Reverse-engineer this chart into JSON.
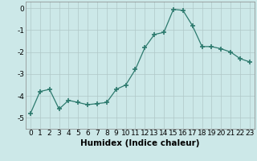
{
  "xlabel": "Humidex (Indice chaleur)",
  "ylabel": "",
  "x": [
    0,
    1,
    2,
    3,
    4,
    5,
    6,
    7,
    8,
    9,
    10,
    11,
    12,
    13,
    14,
    15,
    16,
    17,
    18,
    19,
    20,
    21,
    22,
    23
  ],
  "y": [
    -4.8,
    -3.8,
    -3.7,
    -4.6,
    -4.2,
    -4.3,
    -4.4,
    -4.35,
    -4.3,
    -3.7,
    -3.5,
    -2.8,
    -1.8,
    -1.2,
    -1.1,
    -0.05,
    -0.1,
    -0.8,
    -1.75,
    -1.75,
    -1.85,
    -2.0,
    -2.3,
    -2.45
  ],
  "line_color": "#2d7a6e",
  "marker": "+",
  "marker_size": 4,
  "bg_color": "#cce8e8",
  "grid_color": "#b0c8c8",
  "ylim": [
    -5.5,
    0.3
  ],
  "xlim": [
    -0.5,
    23.5
  ],
  "yticks": [
    0,
    -1,
    -2,
    -3,
    -4,
    -5
  ],
  "xticks": [
    0,
    1,
    2,
    3,
    4,
    5,
    6,
    7,
    8,
    9,
    10,
    11,
    12,
    13,
    14,
    15,
    16,
    17,
    18,
    19,
    20,
    21,
    22,
    23
  ],
  "tick_fontsize": 6.5,
  "xlabel_fontsize": 7.5,
  "ylabel_fontsize": 7
}
